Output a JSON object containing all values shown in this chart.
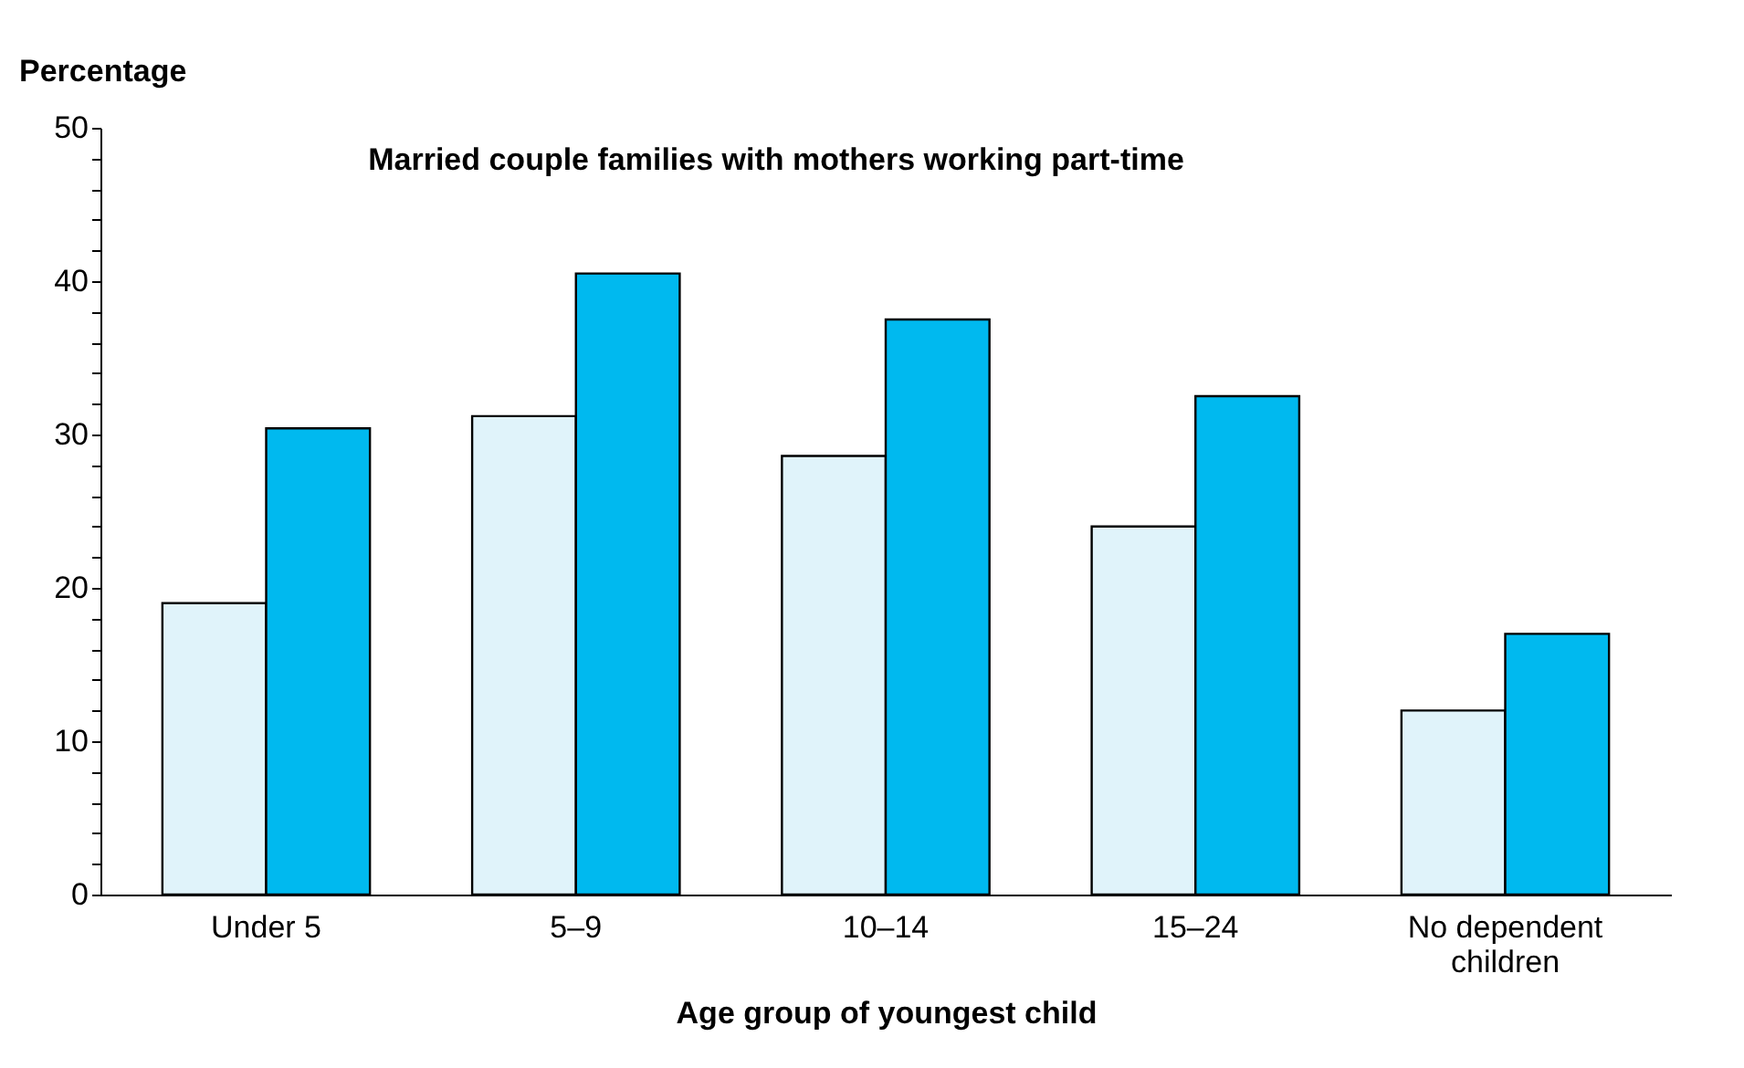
{
  "chart_data": {
    "type": "bar",
    "title": "Married couple families  with mothers working part-time",
    "xlabel": "Age group of youngest child",
    "ylabel": "Percentage",
    "categories": [
      "Under 5",
      "5–9",
      "10–14",
      "15–24",
      "No dependent children"
    ],
    "series": [
      {
        "color": "#e0f3fa",
        "values": [
          19.0,
          31.2,
          28.6,
          24.0,
          12.0
        ]
      },
      {
        "color": "#00b9ef",
        "values": [
          30.4,
          40.5,
          37.5,
          32.5,
          17.0
        ]
      }
    ],
    "ylim": [
      0,
      50
    ],
    "yticks": [
      0,
      {
        "value": 2,
        "label": null
      },
      {
        "value": 4,
        "label": null
      },
      {
        "value": 6,
        "label": null
      },
      {
        "value": 8,
        "label": null
      },
      10,
      {
        "value": 12,
        "label": null
      },
      {
        "value": 14,
        "label": null
      },
      {
        "value": 16,
        "label": null
      },
      {
        "value": 18,
        "label": null
      },
      20,
      {
        "value": 22,
        "label": null
      },
      {
        "value": 24,
        "label": null
      },
      {
        "value": 26,
        "label": null
      },
      {
        "value": 28,
        "label": null
      },
      30,
      {
        "value": 32,
        "label": null
      },
      {
        "value": 34,
        "label": null
      },
      {
        "value": 36,
        "label": null
      },
      {
        "value": 38,
        "label": null
      },
      40,
      {
        "value": 42,
        "label": null
      },
      {
        "value": 44,
        "label": null
      },
      {
        "value": 46,
        "label": null
      },
      {
        "value": 48,
        "label": null
      },
      50
    ],
    "grid": false,
    "legend": false
  }
}
